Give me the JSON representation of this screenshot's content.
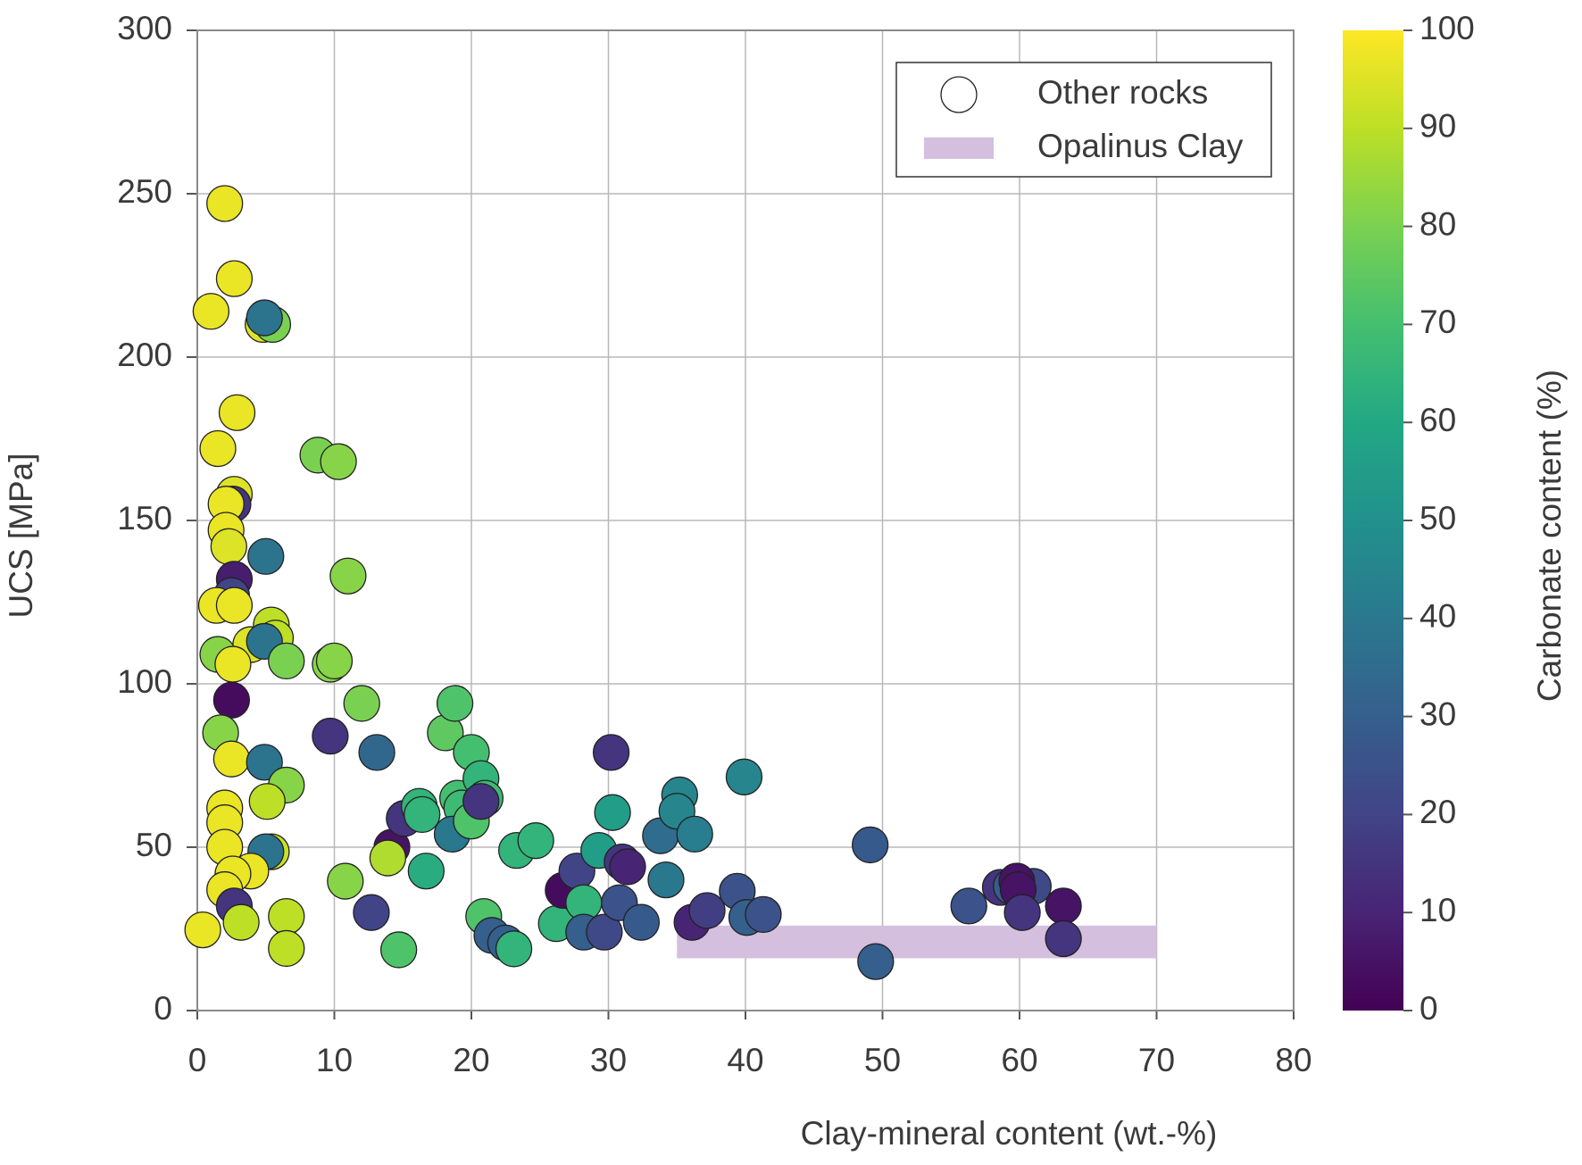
{
  "chart_data": {
    "type": "scatter",
    "xlabel": "Clay-mineral content (wt.-%)",
    "ylabel": "UCS [MPa]",
    "xlim": [
      0,
      80
    ],
    "xticks": [
      0,
      10,
      20,
      30,
      40,
      50,
      60,
      70,
      80
    ],
    "ylim": [
      0,
      300
    ],
    "yticks": [
      0,
      50,
      100,
      150,
      200,
      250,
      300
    ],
    "grid": true,
    "legend": "upper right",
    "series": [
      {
        "name": "Other rocks",
        "x": [
          0.4,
          1.0,
          2.0,
          2.7,
          4.8,
          5.5,
          4.9,
          2.9,
          1.5,
          2.7,
          2.6,
          2.1,
          2.1,
          2.3,
          5.0,
          2.7,
          2.5,
          1.4,
          2.7,
          5.4,
          3.9,
          5.7,
          4.9,
          1.5,
          2.6,
          6.5,
          2.5,
          1.7,
          2.5,
          4.9,
          6.5,
          2.0,
          2.0,
          5.1,
          2.0,
          5.4,
          5.0,
          3.9,
          2.6,
          2.0,
          2.7,
          3.2,
          6.5,
          6.5,
          8.8,
          10.3,
          11.0,
          9.7,
          10.0,
          12.0,
          9.7,
          13.1,
          10.8,
          12.7,
          14.2,
          15.1,
          13.9,
          14.7,
          16.2,
          16.4,
          16.7,
          18.1,
          18.8,
          19.0,
          19.3,
          18.6,
          20.0,
          20.0,
          20.7,
          21.0,
          20.7,
          20.9,
          21.5,
          22.5,
          23.1,
          23.3,
          24.7,
          26.2,
          26.7,
          27.7,
          28.2,
          28.2,
          29.3,
          29.7,
          30.2,
          30.3,
          30.8,
          31.0,
          31.4,
          32.4,
          33.8,
          34.2,
          35.2,
          35.0,
          36.3,
          36.1,
          37.2,
          39.4,
          39.9,
          40.1,
          41.3,
          49.1,
          49.5,
          56.3,
          58.6,
          59.4,
          61.0,
          59.8,
          59.9,
          60.2,
          63.2,
          63.2
        ],
        "values": [
          24.7,
          214,
          247,
          224,
          210,
          210,
          212,
          183,
          172,
          158,
          155,
          155,
          147,
          142,
          139,
          132,
          127,
          124,
          124,
          118,
          112,
          114,
          113,
          109,
          106,
          107,
          95,
          85,
          77,
          76,
          69,
          62,
          57.5,
          64,
          50,
          48.6,
          48.6,
          42.7,
          41.8,
          37,
          32,
          27,
          28.8,
          19,
          170,
          168,
          133,
          106,
          107,
          94,
          84,
          79,
          39.6,
          30,
          50,
          58.8,
          46.7,
          18.6,
          62.5,
          60,
          42.7,
          85,
          94,
          65,
          62,
          54,
          58,
          79,
          71,
          65,
          64,
          28.8,
          23,
          20.7,
          18.9,
          49,
          52,
          26.6,
          36.8,
          42.7,
          33,
          24,
          49,
          24,
          79,
          60.6,
          33,
          45.5,
          44,
          27,
          53.5,
          40,
          66,
          61,
          54,
          27,
          30.6,
          36.5,
          71.5,
          28.5,
          29.4,
          50.7,
          15,
          32,
          37.7,
          38,
          38,
          39.6,
          37,
          30,
          32,
          22
        ],
        "color_values": [
          97,
          97,
          97,
          97,
          95,
          80,
          38,
          97,
          97,
          95,
          15,
          97,
          97,
          95,
          38,
          8,
          20,
          97,
          97,
          90,
          95,
          90,
          38,
          82,
          97,
          80,
          3,
          82,
          97,
          38,
          82,
          97,
          97,
          90,
          97,
          92,
          38,
          97,
          97,
          97,
          15,
          90,
          90,
          90,
          80,
          82,
          82,
          82,
          82,
          80,
          15,
          33,
          82,
          20,
          5,
          15,
          88,
          72,
          65,
          65,
          62,
          75,
          72,
          70,
          68,
          40,
          72,
          70,
          65,
          68,
          15,
          72,
          30,
          30,
          65,
          65,
          65,
          65,
          3,
          20,
          65,
          30,
          55,
          22,
          15,
          55,
          25,
          15,
          10,
          28,
          35,
          40,
          45,
          45,
          42,
          10,
          18,
          25,
          45,
          30,
          25,
          28,
          30,
          25,
          15,
          30,
          22,
          5,
          5,
          15,
          5,
          15
        ]
      }
    ],
    "bands": [
      {
        "name": "Opalinus Clay",
        "x": [
          35,
          70
        ],
        "y": [
          16,
          26
        ],
        "color": "#d4bfde"
      }
    ],
    "colorbar": {
      "label": "Carbonate content (%)",
      "colormap": "viridis",
      "lim": [
        0,
        100
      ],
      "ticks": [
        0,
        10,
        20,
        30,
        40,
        50,
        60,
        70,
        80,
        90,
        100
      ]
    }
  }
}
